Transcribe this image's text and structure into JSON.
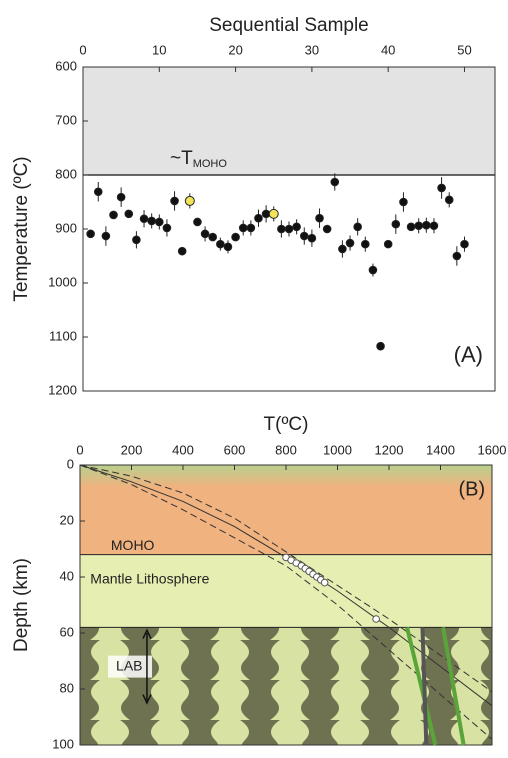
{
  "chart_data": [
    {
      "type": "scatter",
      "x_label": "Sequential Sample",
      "y_label": "Temperature (ºC)",
      "xlim": [
        0,
        54
      ],
      "xticks": [
        0,
        10,
        20,
        30,
        40,
        50
      ],
      "ylim": [
        600,
        1200
      ],
      "yticks": [
        600,
        700,
        800,
        900,
        1000,
        1100,
        1200
      ],
      "y_inverted": true,
      "shade": {
        "from": 600,
        "to": 800,
        "color": "#e3e3e3"
      },
      "ref_line": 800,
      "annotations": [
        {
          "text": "~T",
          "sub": "MOHO"
        },
        {
          "text": "(A)"
        }
      ],
      "x": [
        1,
        2,
        3,
        4,
        5,
        6,
        7,
        8,
        9,
        10,
        11,
        12,
        13,
        14,
        15,
        16,
        17,
        18,
        19,
        20,
        21,
        22,
        23,
        24,
        25,
        26,
        27,
        28,
        29,
        30,
        31,
        32,
        33,
        34,
        35,
        36,
        37,
        38,
        39,
        40,
        41,
        42,
        43,
        44,
        45,
        46,
        47,
        48,
        49,
        50
      ],
      "values": [
        909,
        831,
        913,
        874,
        841,
        872,
        920,
        881,
        885,
        887,
        898,
        848,
        941,
        848,
        887,
        909,
        915,
        928,
        933,
        915,
        898,
        898,
        880,
        872,
        872,
        900,
        900,
        896,
        913,
        917,
        880,
        900,
        813,
        937,
        926,
        896,
        928,
        976,
        1117,
        928,
        891,
        850,
        896,
        894,
        893,
        894,
        824,
        846,
        950,
        928
      ],
      "errors": [
        0,
        18,
        18,
        0,
        18,
        0,
        16,
        16,
        14,
        14,
        16,
        18,
        0,
        14,
        0,
        14,
        0,
        12,
        12,
        0,
        14,
        14,
        16,
        16,
        14,
        16,
        14,
        14,
        16,
        16,
        18,
        0,
        16,
        16,
        14,
        16,
        14,
        12,
        0,
        0,
        18,
        18,
        0,
        14,
        14,
        14,
        20,
        14,
        18,
        14
      ],
      "highlight": [
        14,
        25
      ],
      "color": "#111111",
      "highlight_color": "#f2e35a"
    },
    {
      "type": "line",
      "x_label": "T(ºC)",
      "y_label": "Depth (km)",
      "xlim": [
        0,
        1600
      ],
      "xticks": [
        0,
        200,
        400,
        600,
        800,
        1000,
        1200,
        1400,
        1600
      ],
      "ylim": [
        0,
        100
      ],
      "yticks": [
        0,
        20,
        40,
        60,
        80,
        100
      ],
      "y_inverted": true,
      "bands": [
        {
          "from": 0,
          "to": 32,
          "color": "#f0b27f",
          "top_color": "#b9d08d"
        },
        {
          "from": 32,
          "to": 58,
          "color": "#e7eeb2"
        },
        {
          "from": 58,
          "to": 100,
          "color": "#b7bf84"
        }
      ],
      "annotations": [
        {
          "text": "MOHO",
          "x": 120,
          "y": 29
        },
        {
          "text": "Mantle Lithosphere",
          "x": 40,
          "y": 41
        },
        {
          "text": "LAB",
          "x": 140,
          "y": 72
        },
        {
          "text": "(B)",
          "x": 1470,
          "y": 9
        }
      ],
      "series": [
        {
          "style": "solid",
          "color": "#333333",
          "x": [
            0,
            200,
            400,
            600,
            800,
            1000,
            1200,
            1400,
            1600
          ],
          "y": [
            0,
            6,
            13,
            22,
            33,
            45,
            58,
            72,
            86
          ]
        },
        {
          "style": "dashed",
          "color": "#333333",
          "x": [
            0,
            200,
            400,
            600,
            800,
            1000,
            1200,
            1400,
            1600
          ],
          "y": [
            0,
            4,
            10,
            19,
            31,
            43,
            55,
            68,
            81
          ]
        },
        {
          "style": "dashed",
          "color": "#333333",
          "x": [
            0,
            200,
            400,
            600,
            800,
            1000,
            1200,
            1400,
            1600
          ],
          "y": [
            0,
            7,
            16,
            26,
            36,
            50,
            66,
            82,
            98
          ]
        },
        {
          "style": "thick",
          "color": "#5aa53a",
          "x": [
            1270,
            1380
          ],
          "y": [
            58,
            100
          ]
        },
        {
          "style": "thick",
          "color": "#5aa53a",
          "x": [
            1410,
            1490
          ],
          "y": [
            58,
            100
          ]
        },
        {
          "style": "thick",
          "color": "#555555",
          "x": [
            1330,
            1345
          ],
          "y": [
            58,
            100
          ]
        },
        {
          "style": "markers",
          "color": "#ffffff",
          "x": [
            800,
            820,
            840,
            860,
            875,
            890,
            905,
            920,
            935,
            950,
            1150
          ],
          "y": [
            33,
            34,
            35,
            36,
            37,
            38,
            39,
            40,
            41,
            42,
            55
          ]
        }
      ]
    }
  ]
}
